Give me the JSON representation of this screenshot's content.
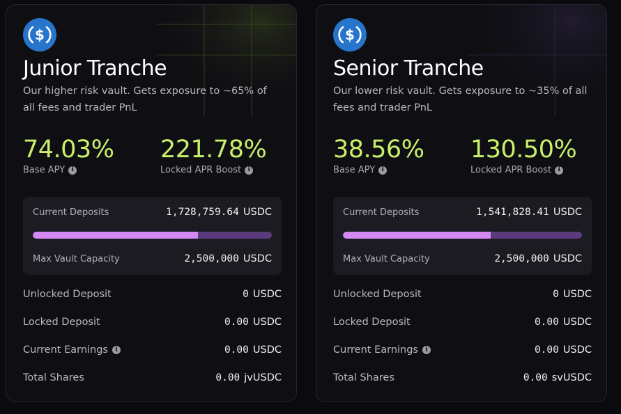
{
  "cards": [
    {
      "title": "Junior Tranche",
      "description": "Our higher risk vault. Gets exposure to ~65% of all fees and trader PnL",
      "icon": "usdc-icon",
      "accent_color": "#c8f06b",
      "base_apy": {
        "value": "74.03%",
        "label": "Base APY"
      },
      "locked_apr": {
        "value": "221.78%",
        "label": "Locked APR Boost"
      },
      "deposits": {
        "current_label": "Current Deposits",
        "current_value": "1,728,759.64",
        "current_unit": "USDC",
        "max_label": "Max Vault Capacity",
        "max_value": "2,500,000",
        "max_unit": "USDC",
        "fill_fraction": 0.6915
      },
      "rows": [
        {
          "label": "Unlocked Deposit",
          "value": "0",
          "unit": "USDC"
        },
        {
          "label": "Locked Deposit",
          "value": "0.00",
          "unit": "USDC"
        },
        {
          "label": "Current Earnings",
          "value": "0.00",
          "unit": "USDC"
        },
        {
          "label": "Total Shares",
          "value": "0.00",
          "unit": "jvUSDC"
        }
      ]
    },
    {
      "title": "Senior Tranche",
      "description": "Our lower risk vault. Gets exposure to ~35% of all fees and trader PnL",
      "icon": "usdc-icon",
      "accent_color": "#c8f06b",
      "base_apy": {
        "value": "38.56%",
        "label": "Base APY"
      },
      "locked_apr": {
        "value": "130.50%",
        "label": "Locked APR Boost"
      },
      "deposits": {
        "current_label": "Current Deposits",
        "current_value": "1,541,828.41",
        "current_unit": "USDC",
        "max_label": "Max Vault Capacity",
        "max_value": "2,500,000",
        "max_unit": "USDC",
        "fill_fraction": 0.6167
      },
      "rows": [
        {
          "label": "Unlocked Deposit",
          "value": "0",
          "unit": "USDC"
        },
        {
          "label": "Locked Deposit",
          "value": "0.00",
          "unit": "USDC"
        },
        {
          "label": "Current Earnings",
          "value": "0.00",
          "unit": "USDC"
        },
        {
          "label": "Total Shares",
          "value": "0.00",
          "unit": "svUSDC"
        }
      ]
    }
  ],
  "colors": {
    "bar_fill": "#d489f2",
    "bar_track": "#5b3b7c",
    "usdc_blue": "#2775ca"
  }
}
